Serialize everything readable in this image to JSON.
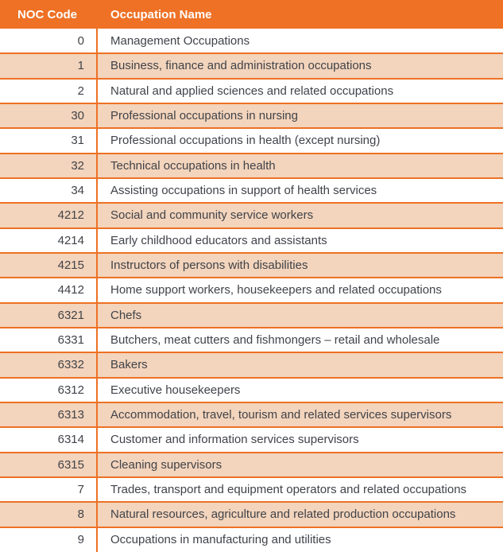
{
  "colors": {
    "header_bg": "#EE7125",
    "border": "#ED7125",
    "row_alt_bg": "#F3D4BC",
    "row_bg": "#FFFFFF",
    "header_text": "#FFFFFF",
    "body_text": "#404349"
  },
  "table": {
    "columns": [
      {
        "label": "NOC Code"
      },
      {
        "label": "Occupation Name"
      }
    ],
    "rows": [
      {
        "code": "0",
        "name": "Management Occupations"
      },
      {
        "code": "1",
        "name": "Business, finance and administration occupations"
      },
      {
        "code": "2",
        "name": "Natural and applied sciences and related occupations"
      },
      {
        "code": "30",
        "name": "Professional occupations in nursing"
      },
      {
        "code": "31",
        "name": "Professional occupations in health (except nursing)"
      },
      {
        "code": "32",
        "name": "Technical occupations in health"
      },
      {
        "code": "34",
        "name": "Assisting occupations in support of health services"
      },
      {
        "code": "4212",
        "name": "Social and community service workers"
      },
      {
        "code": "4214",
        "name": "Early childhood educators and assistants"
      },
      {
        "code": "4215",
        "name": "Instructors of persons with disabilities"
      },
      {
        "code": "4412",
        "name": "Home support workers, housekeepers and related occupations"
      },
      {
        "code": "6321",
        "name": "Chefs"
      },
      {
        "code": "6331",
        "name": "Butchers, meat cutters and fishmongers – retail and wholesale"
      },
      {
        "code": "6332",
        "name": "Bakers"
      },
      {
        "code": "6312",
        "name": "Executive housekeepers"
      },
      {
        "code": "6313",
        "name": "Accommodation, travel, tourism and related services supervisors"
      },
      {
        "code": "6314",
        "name": "Customer and information services supervisors"
      },
      {
        "code": "6315",
        "name": "Cleaning supervisors"
      },
      {
        "code": "7",
        "name": "Trades, transport and equipment operators and related occupations"
      },
      {
        "code": "8",
        "name": "Natural resources, agriculture and related production occupations"
      },
      {
        "code": "9",
        "name": "Occupations in manufacturing and utilities"
      }
    ]
  }
}
